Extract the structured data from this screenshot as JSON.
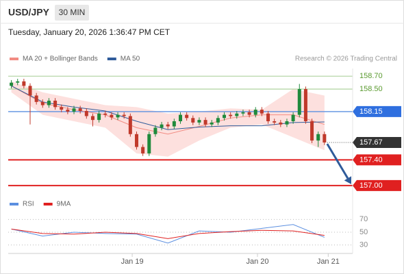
{
  "header": {
    "symbol": "USD/JPY",
    "interval": "30 MIN",
    "timestamp": "Tuesday, January 20, 2026 1:36:47 PM CET"
  },
  "chart_data": [
    {
      "type": "candlestick",
      "source": "Research © 2026 Trading Central",
      "up_color": "#1f8a3c",
      "down_color": "#c0392b",
      "xlim": [
        -0.5,
        54.5
      ],
      "xticks": [
        {
          "value": 19.3,
          "label": "Jan 19"
        },
        {
          "value": 39.3,
          "label": "Jan 20"
        },
        {
          "value": 50.6,
          "label": "Jan 21"
        }
      ],
      "ylim": [
        156.85,
        158.82
      ],
      "open": [
        158.55,
        158.6,
        158.62,
        158.55,
        158.4,
        158.3,
        158.25,
        158.32,
        158.22,
        158.18,
        158.15,
        158.2,
        158.16,
        158.08,
        158.02,
        158.12,
        158.1,
        158.06,
        158.1,
        158.08,
        157.8,
        157.6,
        157.5,
        157.8,
        157.9,
        157.95,
        157.92,
        158.0,
        158.1,
        158.05,
        157.98,
        158.02,
        157.95,
        157.98,
        158.05,
        158.1,
        158.08,
        158.12,
        158.14,
        158.1,
        158.18,
        158.12,
        158.0,
        157.98,
        157.95,
        158.0,
        158.1,
        158.5,
        158.0,
        157.7,
        157.8
      ],
      "high": [
        158.64,
        158.66,
        158.66,
        158.59,
        158.44,
        158.34,
        158.36,
        158.36,
        158.26,
        158.22,
        158.24,
        158.24,
        158.2,
        158.12,
        158.16,
        158.16,
        158.14,
        158.14,
        158.14,
        158.12,
        157.84,
        157.64,
        157.84,
        157.94,
        157.99,
        157.99,
        158.04,
        158.14,
        158.14,
        158.09,
        158.06,
        158.06,
        158.02,
        158.09,
        158.14,
        158.14,
        158.16,
        158.18,
        158.18,
        158.22,
        158.22,
        158.16,
        158.04,
        158.02,
        158.04,
        158.14,
        158.58,
        158.54,
        158.04,
        157.84,
        157.84
      ],
      "low": [
        158.51,
        158.56,
        158.51,
        157.95,
        158.26,
        158.21,
        158.21,
        158.18,
        158.14,
        158.11,
        158.11,
        158.12,
        158.04,
        157.92,
        157.98,
        158.06,
        158.02,
        158.02,
        158.04,
        157.76,
        157.56,
        157.46,
        157.46,
        157.76,
        157.86,
        157.88,
        157.88,
        157.96,
        158.01,
        157.94,
        157.94,
        157.91,
        157.91,
        157.94,
        158.01,
        158.04,
        158.04,
        158.08,
        158.06,
        158.06,
        158.08,
        157.96,
        157.94,
        157.91,
        157.91,
        157.96,
        158.06,
        157.96,
        157.66,
        157.6,
        157.63
      ],
      "close": [
        158.6,
        158.62,
        158.55,
        158.4,
        158.3,
        158.25,
        158.32,
        158.22,
        158.18,
        158.15,
        158.2,
        158.16,
        158.08,
        158.02,
        158.12,
        158.1,
        158.06,
        158.1,
        158.08,
        157.8,
        157.6,
        157.5,
        157.8,
        157.9,
        157.95,
        157.92,
        158.0,
        158.1,
        158.05,
        157.98,
        158.02,
        157.95,
        157.98,
        158.05,
        158.1,
        158.08,
        158.12,
        158.14,
        158.1,
        158.18,
        158.12,
        158.0,
        157.98,
        157.95,
        158.0,
        158.1,
        158.5,
        158.0,
        157.7,
        157.8,
        157.67
      ],
      "ma_x": [
        0,
        5,
        10,
        15,
        20,
        25,
        30,
        35,
        40,
        45,
        50
      ],
      "series": [
        {
          "name": "MA 20 + Bollinger Bands",
          "color": "#f28b82",
          "band_color": "#fde0de",
          "values": [
            158.55,
            158.28,
            158.18,
            158.1,
            157.9,
            157.8,
            157.92,
            158.05,
            158.1,
            158.1,
            157.95
          ],
          "upper": [
            158.62,
            158.45,
            158.35,
            158.25,
            158.22,
            158.12,
            158.15,
            158.2,
            158.18,
            158.5,
            158.4
          ],
          "lower": [
            158.45,
            158.1,
            158.0,
            157.9,
            157.5,
            157.45,
            157.7,
            157.9,
            157.95,
            157.75,
            157.55
          ]
        },
        {
          "name": "MA 50",
          "color": "#2f5b9a",
          "values": [
            158.55,
            158.3,
            158.22,
            158.16,
            158.0,
            157.87,
            157.91,
            157.93,
            157.93,
            157.98,
            157.99
          ]
        }
      ],
      "levels": [
        {
          "value": 158.7,
          "label": "158.70",
          "color": "#b6d7a8",
          "text_color": "#5a9a2f",
          "boxed": false
        },
        {
          "value": 158.5,
          "label": "158.50",
          "color": "#b6d7a8",
          "text_color": "#5a9a2f",
          "boxed": false
        },
        {
          "value": 158.15,
          "label": "158.15",
          "color": "#5b8fe0",
          "text_color": "#ffffff",
          "box_color": "#2f6fdf",
          "boxed": true
        },
        {
          "value": 157.67,
          "label": "157.67",
          "color": "#555555",
          "text_color": "#ffffff",
          "box_color": "#333333",
          "boxed": true,
          "dotted": true
        },
        {
          "value": 157.4,
          "label": "157.40",
          "color": "#e02020",
          "text_color": "#ffffff",
          "box_color": "#e02020",
          "boxed": true
        },
        {
          "value": 157.0,
          "label": "157.00",
          "color": "#e02020",
          "text_color": "#ffffff",
          "box_color": "#e02020",
          "boxed": true
        }
      ],
      "arrow_color": "#2f5b9a"
    },
    {
      "type": "line",
      "x": [
        0,
        5,
        10,
        15,
        20,
        25,
        30,
        35,
        40,
        45,
        50
      ],
      "ylim": [
        20,
        80
      ],
      "yticks": [
        70,
        50,
        30
      ],
      "series": [
        {
          "name": "RSI",
          "color": "#5b8fe0",
          "values": [
            55,
            44,
            50,
            48,
            47,
            33,
            52,
            50,
            56,
            62,
            42
          ]
        },
        {
          "name": "9MA",
          "color": "#e02020",
          "values": [
            55,
            48,
            47,
            50,
            48,
            40,
            48,
            51,
            53,
            52,
            45
          ]
        }
      ]
    }
  ]
}
